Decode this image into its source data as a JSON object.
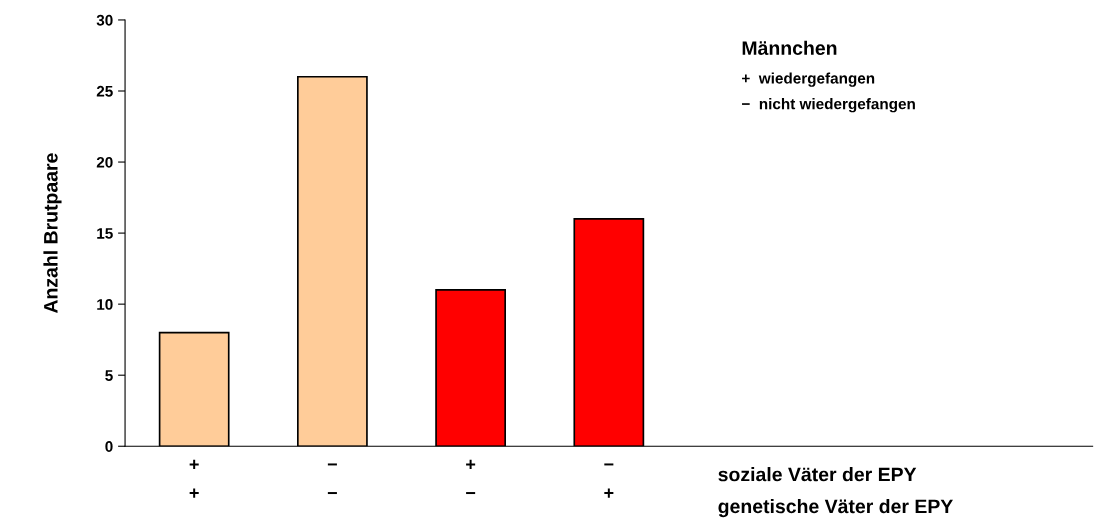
{
  "chart_data": {
    "type": "bar",
    "ylabel": "Anzahl Brutpaare",
    "categories": [
      "+\n+",
      "−\n−",
      "+\n−",
      "−\n+",
      null,
      null,
      null
    ],
    "values": [
      8,
      26,
      11,
      16,
      null,
      null,
      null
    ],
    "colors": [
      "#ffcc99",
      "#ffcc99",
      "#ff0000",
      "#ff0000",
      null,
      null,
      null
    ],
    "ylim": [
      0,
      30
    ],
    "yticks": [
      0,
      5,
      10,
      15,
      20,
      25,
      30
    ],
    "grid": false,
    "legend": false,
    "annotations": [
      "soziale Väter der EPY",
      "genetische Väter der EPY",
      "Männchen",
      "+  wiedergefangen",
      "−  nicht wiedergefangen"
    ]
  }
}
